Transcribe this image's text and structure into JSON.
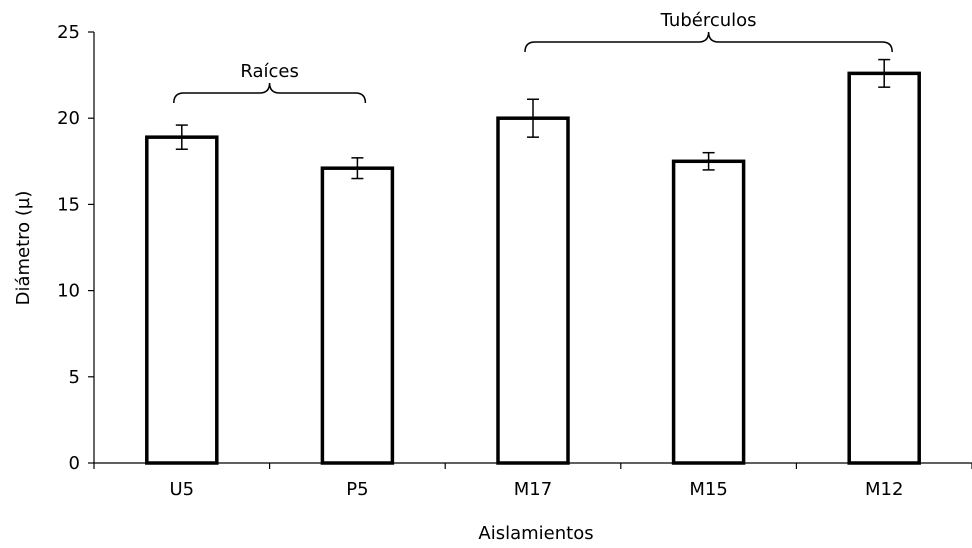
{
  "chart_data": {
    "type": "bar",
    "title": "",
    "xlabel": "Aislamientos",
    "ylabel": "Diámetro (µ)",
    "categories": [
      "U5",
      "P5",
      "M17",
      "M15",
      "M12"
    ],
    "values": [
      18.9,
      17.1,
      20.0,
      17.5,
      22.6
    ],
    "errors": [
      0.7,
      0.6,
      1.1,
      0.5,
      0.8
    ],
    "ylim": [
      0,
      25
    ],
    "yticks": [
      "0",
      "5",
      "10",
      "15",
      "20",
      "25"
    ],
    "grid": false,
    "annotations": [
      {
        "label": "Raíces",
        "from_category": 0,
        "to_category": 1
      },
      {
        "label": "Tubérculos",
        "from_category": 2,
        "to_category": 4
      }
    ]
  }
}
